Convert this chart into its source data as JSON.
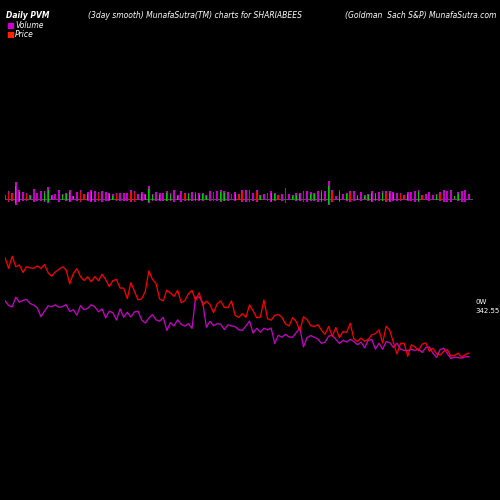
{
  "title_left": "Daily PVM",
  "title_center": "(3day smooth) MunafaSutra(TM) charts for SHARIABEES",
  "title_right": "(Goldman  Sach S&P) MunafaSutra.com",
  "legend_volume_color": "#cc00cc",
  "legend_price_color": "#ff2200",
  "background_color": "#000000",
  "text_color": "#ffffff",
  "label_right_top": "0W",
  "label_right_bottom": "342.55",
  "n_bars": 130,
  "volume_bar_color": "#cc00cc",
  "price_marker_color_up": "#00cc00",
  "price_marker_color_down": "#ff0000",
  "price_line_color": "#ff0000",
  "price_smooth_color": "#cc00cc"
}
